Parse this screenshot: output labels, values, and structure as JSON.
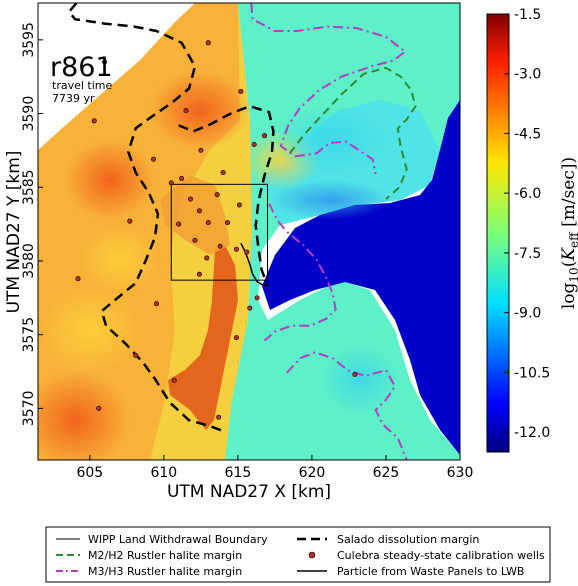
{
  "chart_data": {
    "type": "heatmap",
    "realization_label": "r861",
    "travel_time_label": "travel time",
    "travel_time_value": "7739 yr",
    "xlabel": "UTM NAD27 X [km]",
    "ylabel": "UTM NAD27 Y [km]",
    "xlim": [
      601.5,
      630
    ],
    "ylim": [
      3566.5,
      3597.5
    ],
    "x_ticks": [
      605,
      610,
      615,
      620,
      625,
      630
    ],
    "y_ticks": [
      3570,
      3575,
      3580,
      3585,
      3590,
      3595
    ],
    "colorbar": {
      "label_prefix": "log",
      "label_sub": "10",
      "label_var": "K",
      "label_var_sub": "eff",
      "label_units": "[m/sec]",
      "range": [
        -12.5,
        -1.5
      ],
      "ticks": [
        "-1.5",
        "-3.0",
        "-4.5",
        "-6.0",
        "-7.5",
        "-9.0",
        "-10.5",
        "-12.0"
      ],
      "tick_values": [
        -1.5,
        -3.0,
        -4.5,
        -6.0,
        -7.5,
        -9.0,
        -10.5,
        -12.0
      ],
      "colormap": "jet"
    },
    "colors": {
      "low_k_region": "#0000c8",
      "salado_line": "#000000",
      "m2h2_line": "#2e8b2e",
      "m3h3_line": "#b040c0",
      "well_marker": "#b03030"
    },
    "wipp_boundary": {
      "x": [
        610.5,
        617
      ],
      "y": [
        3578.7,
        3585.2
      ]
    },
    "wells": [
      [
        606.0,
        3593.5
      ],
      [
        613.0,
        3594.8
      ],
      [
        605.3,
        3589.5
      ],
      [
        611.5,
        3590.2
      ],
      [
        615.2,
        3591.5
      ],
      [
        616.8,
        3588.5
      ],
      [
        609.3,
        3586.9
      ],
      [
        612.5,
        3587.5
      ],
      [
        614.0,
        3586.0
      ],
      [
        616.1,
        3587.9
      ],
      [
        610.5,
        3585.3
      ],
      [
        611.2,
        3585.6
      ],
      [
        611.8,
        3584.2
      ],
      [
        612.4,
        3583.4
      ],
      [
        613.0,
        3582.6
      ],
      [
        614.3,
        3582.6
      ],
      [
        615.1,
        3583.8
      ],
      [
        613.6,
        3584.5
      ],
      [
        612.1,
        3581.4
      ],
      [
        612.9,
        3580.2
      ],
      [
        613.8,
        3581.0
      ],
      [
        614.9,
        3580.8
      ],
      [
        615.6,
        3580.6
      ],
      [
        611.0,
        3582.5
      ],
      [
        612.4,
        3579.1
      ],
      [
        607.7,
        3582.7
      ],
      [
        604.2,
        3578.8
      ],
      [
        609.5,
        3577.1
      ],
      [
        615.8,
        3576.8
      ],
      [
        616.3,
        3577.5
      ],
      [
        608.1,
        3573.6
      ],
      [
        614.9,
        3574.8
      ],
      [
        610.7,
        3571.9
      ],
      [
        605.6,
        3570.0
      ],
      [
        613.7,
        3569.4
      ],
      [
        622.9,
        3572.3
      ]
    ],
    "salado_margin": [
      [
        604.1,
        3597.5
      ],
      [
        603.6,
        3596.9
      ],
      [
        604.0,
        3596.4
      ],
      [
        606.0,
        3596.1
      ],
      [
        608.0,
        3595.9
      ],
      [
        609.5,
        3595.6
      ],
      [
        611.2,
        3594.8
      ],
      [
        612.1,
        3593.2
      ],
      [
        611.7,
        3591.7
      ],
      [
        610.5,
        3590.7
      ],
      [
        609.2,
        3589.8
      ],
      [
        608.1,
        3589.0
      ],
      [
        607.6,
        3587.4
      ],
      [
        608.1,
        3586.0
      ],
      [
        609.0,
        3584.6
      ],
      [
        609.6,
        3583.2
      ],
      [
        609.4,
        3581.6
      ],
      [
        608.8,
        3580.1
      ],
      [
        608.1,
        3578.5
      ],
      [
        607.0,
        3577.6
      ],
      [
        605.8,
        3576.6
      ],
      [
        606.1,
        3575.6
      ],
      [
        607.4,
        3574.4
      ],
      [
        608.6,
        3573.1
      ],
      [
        609.4,
        3572.0
      ],
      [
        610.4,
        3570.4
      ],
      [
        611.7,
        3569.2
      ],
      [
        613.1,
        3568.8
      ],
      [
        614.2,
        3568.4
      ]
    ],
    "salado_margin_2": [
      [
        611.0,
        3589.2
      ],
      [
        612.0,
        3588.8
      ],
      [
        613.2,
        3589.3
      ],
      [
        614.5,
        3590.0
      ],
      [
        615.8,
        3590.5
      ],
      [
        617.1,
        3590.1
      ],
      [
        617.4,
        3588.8
      ],
      [
        617.3,
        3587.4
      ],
      [
        616.8,
        3585.8
      ],
      [
        616.4,
        3584.1
      ],
      [
        616.2,
        3582.4
      ],
      [
        616.4,
        3580.8
      ],
      [
        616.6,
        3579.4
      ],
      [
        617.0,
        3578.3
      ]
    ],
    "m2h2_margin": [
      [
        618.5,
        3587.3
      ],
      [
        619.5,
        3588.6
      ],
      [
        620.6,
        3589.8
      ],
      [
        622.0,
        3591.3
      ],
      [
        623.5,
        3592.7
      ],
      [
        625.0,
        3593.1
      ],
      [
        626.0,
        3592.5
      ],
      [
        626.7,
        3591.6
      ],
      [
        627.0,
        3590.5
      ],
      [
        626.4,
        3589.6
      ],
      [
        625.8,
        3589.0
      ],
      [
        626.0,
        3587.7
      ],
      [
        626.4,
        3586.2
      ],
      [
        625.9,
        3585.0
      ],
      [
        625.0,
        3584.2
      ]
    ],
    "m3h3_margin": [
      [
        615.9,
        3597.5
      ],
      [
        616.0,
        3596.4
      ],
      [
        617.5,
        3595.6
      ],
      [
        619.0,
        3595.6
      ],
      [
        621.0,
        3595.9
      ],
      [
        623.0,
        3595.8
      ],
      [
        625.0,
        3595.2
      ],
      [
        626.3,
        3594.2
      ],
      [
        625.5,
        3593.6
      ],
      [
        624.0,
        3593.2
      ],
      [
        622.0,
        3592.5
      ],
      [
        620.5,
        3591.6
      ],
      [
        619.2,
        3590.4
      ],
      [
        618.4,
        3589.2
      ],
      [
        617.9,
        3587.8
      ],
      [
        618.9,
        3587.1
      ],
      [
        620.3,
        3587.3
      ],
      [
        621.2,
        3588.0
      ],
      [
        622.3,
        3588.1
      ],
      [
        623.2,
        3587.5
      ],
      [
        624.1,
        3586.9
      ],
      [
        624.3,
        3585.9
      ]
    ],
    "m3h3_margin_2": [
      [
        617.1,
        3583.9
      ],
      [
        617.7,
        3582.7
      ],
      [
        618.4,
        3581.9
      ],
      [
        619.4,
        3581.1
      ],
      [
        620.3,
        3580.1
      ],
      [
        620.9,
        3579.0
      ],
      [
        621.4,
        3577.8
      ],
      [
        621.6,
        3576.7
      ],
      [
        621.0,
        3576.1
      ],
      [
        619.9,
        3575.6
      ],
      [
        618.6,
        3575.6
      ],
      [
        617.5,
        3575.2
      ],
      [
        616.8,
        3574.6
      ]
    ],
    "m3h3_margin_3": [
      [
        618.3,
        3572.4
      ],
      [
        619.2,
        3573.4
      ],
      [
        620.2,
        3573.8
      ],
      [
        621.4,
        3573.4
      ],
      [
        622.4,
        3572.6
      ],
      [
        623.6,
        3572.2
      ],
      [
        625.0,
        3572.6
      ],
      [
        625.6,
        3571.5
      ],
      [
        625.0,
        3570.6
      ],
      [
        624.3,
        3569.9
      ],
      [
        624.8,
        3568.9
      ],
      [
        625.8,
        3568.0
      ],
      [
        626.4,
        3566.5
      ]
    ],
    "particle_path": [
      [
        615.2,
        3581.2
      ],
      [
        615.5,
        3580.6
      ],
      [
        615.8,
        3579.8
      ],
      [
        616.0,
        3579.1
      ],
      [
        616.3,
        3578.6
      ],
      [
        616.8,
        3578.3
      ]
    ],
    "legend": [
      {
        "label": "WIPP Land Withdrawal Boundary",
        "style": "solid-thin",
        "color": "#000000"
      },
      {
        "label": "Salado dissolution margin",
        "style": "dashed-thick",
        "color": "#000000"
      },
      {
        "label": "M2/H2 Rustler halite margin",
        "style": "dashed",
        "color": "#2e8b2e"
      },
      {
        "label": "Culebra steady-state calibration wells",
        "style": "marker",
        "color": "#b03030"
      },
      {
        "label": "M3/H3 Rustler halite margin",
        "style": "dashdot",
        "color": "#b040c0"
      },
      {
        "label": "Particle from Waste Panels to LWB",
        "style": "solid",
        "color": "#000000"
      }
    ]
  }
}
